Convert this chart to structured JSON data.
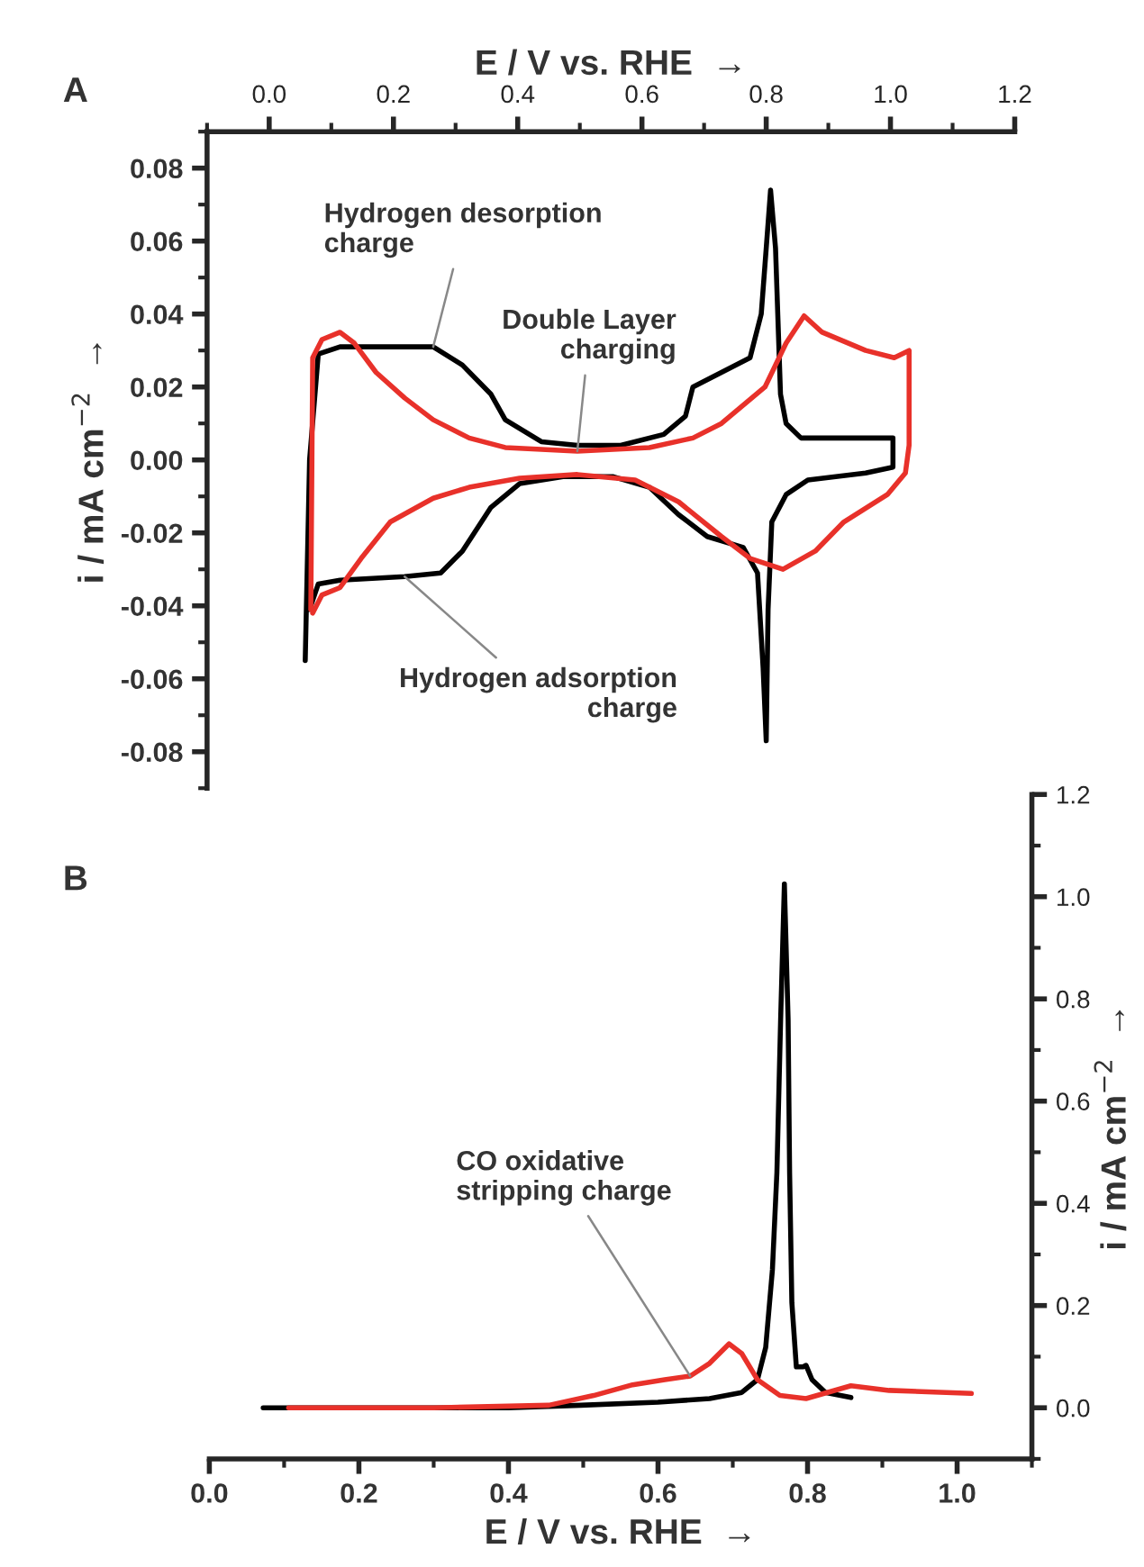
{
  "chart_data": [
    {
      "type": "line",
      "title": "A",
      "xlabel": "E / V vs. RHE  →",
      "ylabel": "i / mA cm$^{−2}$  →",
      "xlim": [
        -0.1,
        1.2
      ],
      "ylim": [
        -0.09,
        0.09
      ],
      "xticks": [
        {
          "value": 0.0,
          "label": "0.0"
        },
        {
          "value": 0.2,
          "label": "0.2"
        },
        {
          "value": 0.4,
          "label": "0.4"
        },
        {
          "value": 0.6,
          "label": "0.6"
        },
        {
          "value": 0.8,
          "label": "0.8"
        },
        {
          "value": 1.0,
          "label": "1.0"
        },
        {
          "value": 1.2,
          "label": "1.2"
        }
      ],
      "yticks": [
        {
          "value": -0.08,
          "label": "-0.08"
        },
        {
          "value": -0.06,
          "label": "-0.06"
        },
        {
          "value": -0.04,
          "label": "-0.04"
        },
        {
          "value": -0.02,
          "label": "-0.02"
        },
        {
          "value": 0.0,
          "label": "0.00"
        },
        {
          "value": 0.02,
          "label": "0.02"
        },
        {
          "value": 0.04,
          "label": "0.04"
        },
        {
          "value": 0.06,
          "label": "0.06"
        },
        {
          "value": 0.08,
          "label": "0.08"
        }
      ],
      "series": [
        {
          "color": "#000000",
          "x": [
            0.058,
            0.065,
            0.079,
            0.114,
            0.264,
            0.311,
            0.357,
            0.38,
            0.438,
            0.496,
            0.566,
            0.635,
            0.67,
            0.682,
            0.728,
            0.774,
            0.792,
            0.8,
            0.807,
            0.815,
            0.821,
            0.823,
            0.832,
            0.856,
            1.004,
            1.004,
            0.96,
            0.867,
            0.832,
            0.809,
            0.803,
            0.8,
            0.795,
            0.786,
            0.763,
            0.705,
            0.659,
            0.612,
            0.554,
            0.473,
            0.403,
            0.357,
            0.311,
            0.276,
            0.218,
            0.114,
            0.079,
            0.065
          ],
          "values": [
            -0.055,
            0.0,
            0.029,
            0.031,
            0.031,
            0.026,
            0.018,
            0.011,
            0.005,
            0.004,
            0.004,
            0.007,
            0.012,
            0.02,
            0.024,
            0.028,
            0.04,
            0.058,
            0.074,
            0.058,
            0.028,
            0.018,
            0.01,
            0.006,
            0.006,
            -0.002,
            -0.0036,
            -0.0055,
            -0.0095,
            -0.017,
            -0.041,
            -0.077,
            -0.057,
            -0.031,
            -0.024,
            -0.021,
            -0.015,
            -0.0075,
            -0.0046,
            -0.0046,
            -0.0065,
            -0.013,
            -0.025,
            -0.031,
            -0.032,
            -0.033,
            -0.034,
            -0.041
          ]
        },
        {
          "color": "#e8312a",
          "x": [
            0.067,
            0.07,
            0.085,
            0.114,
            0.137,
            0.172,
            0.218,
            0.264,
            0.322,
            0.38,
            0.496,
            0.612,
            0.682,
            0.728,
            0.763,
            0.798,
            0.832,
            0.861,
            0.89,
            0.96,
            1.006,
            1.03,
            1.03,
            1.024,
            0.995,
            0.925,
            0.879,
            0.827,
            0.774,
            0.728,
            0.659,
            0.589,
            0.496,
            0.403,
            0.322,
            0.264,
            0.195,
            0.148,
            0.114,
            0.085,
            0.07
          ],
          "values": [
            -0.041,
            0.028,
            0.033,
            0.035,
            0.032,
            0.024,
            0.017,
            0.011,
            0.006,
            0.0034,
            0.0024,
            0.0034,
            0.006,
            0.01,
            0.015,
            0.02,
            0.032,
            0.0395,
            0.035,
            0.03,
            0.028,
            0.03,
            0.004,
            -0.0036,
            -0.0095,
            -0.017,
            -0.025,
            -0.03,
            -0.027,
            -0.021,
            -0.0115,
            -0.0055,
            -0.004,
            -0.005,
            -0.0075,
            -0.0105,
            -0.017,
            -0.027,
            -0.035,
            -0.037,
            -0.042
          ]
        }
      ],
      "annotations": [
        {
          "text": "Hydrogen desorption\ncharge",
          "x": 0.264,
          "y": 0.031
        },
        {
          "text": "Double Layer\ncharging",
          "x": 0.496,
          "y": 0.0024
        },
        {
          "text": "Hydrogen adsorption\ncharge",
          "x": 0.218,
          "y": -0.032
        }
      ]
    },
    {
      "type": "line",
      "title": "B",
      "xlabel": "E / V vs. RHE  →",
      "ylabel": "i / mA cm$^{−2}$  →",
      "xlim": [
        0.0,
        1.1
      ],
      "ylim": [
        -0.1,
        1.2
      ],
      "xticks": [
        {
          "value": 0.0,
          "label": "0.0"
        },
        {
          "value": 0.2,
          "label": "0.2"
        },
        {
          "value": 0.4,
          "label": "0.4"
        },
        {
          "value": 0.6,
          "label": "0.6"
        },
        {
          "value": 0.8,
          "label": "0.8"
        },
        {
          "value": 1.0,
          "label": "1.0"
        }
      ],
      "yticks": [
        {
          "value": 0.0,
          "label": "0.0"
        },
        {
          "value": 0.2,
          "label": "0.2"
        },
        {
          "value": 0.4,
          "label": "0.4"
        },
        {
          "value": 0.6,
          "label": "0.6"
        },
        {
          "value": 0.8,
          "label": "0.8"
        },
        {
          "value": 1.0,
          "label": "1.0"
        },
        {
          "value": 1.2,
          "label": "1.2"
        }
      ],
      "series": [
        {
          "color": "#000000",
          "x": [
            0.072,
            0.4,
            0.497,
            0.6,
            0.669,
            0.712,
            0.733,
            0.744,
            0.753,
            0.759,
            0.764,
            0.769,
            0.774,
            0.776,
            0.779,
            0.785,
            0.794,
            0.798,
            0.806,
            0.824,
            0.858
          ],
          "values": [
            0.0,
            0.0,
            0.005,
            0.011,
            0.018,
            0.03,
            0.055,
            0.118,
            0.27,
            0.46,
            0.76,
            1.025,
            0.76,
            0.46,
            0.206,
            0.08,
            0.08,
            0.083,
            0.055,
            0.03,
            0.02
          ]
        },
        {
          "color": "#e8312a",
          "x": [
            0.106,
            0.3,
            0.454,
            0.514,
            0.566,
            0.609,
            0.643,
            0.669,
            0.695,
            0.712,
            0.733,
            0.763,
            0.798,
            0.858,
            0.909,
            1.019
          ],
          "values": [
            0.0,
            0.0,
            0.005,
            0.024,
            0.045,
            0.055,
            0.062,
            0.087,
            0.125,
            0.106,
            0.055,
            0.024,
            0.018,
            0.043,
            0.034,
            0.028
          ]
        }
      ],
      "annotations": [
        {
          "text": "CO oxidative\nstripping charge",
          "x": 0.643,
          "y": 0.062
        }
      ]
    }
  ]
}
